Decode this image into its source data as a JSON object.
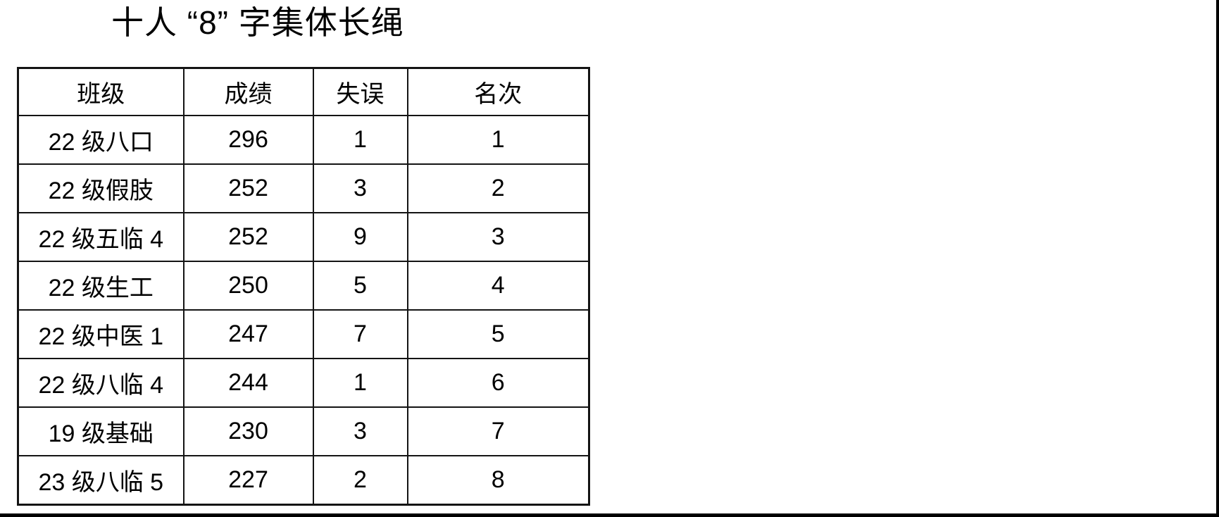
{
  "page": {
    "background": "#ffffff",
    "frame_border_color": "#000000",
    "text_color": "#000000",
    "table_border_color": "#141414"
  },
  "title": "十人 “8” 字集体长绳",
  "table": {
    "headers": [
      "班级",
      "成绩",
      "失误",
      "名次"
    ],
    "rows": [
      {
        "class": "22 级八口",
        "score": "296",
        "errors": "1",
        "rank": "1"
      },
      {
        "class": "22 级假肢",
        "score": "252",
        "errors": "3",
        "rank": "2"
      },
      {
        "class": "22 级五临 4",
        "score": "252",
        "errors": "9",
        "rank": "3"
      },
      {
        "class": "22 级生工",
        "score": "250",
        "errors": "5",
        "rank": "4"
      },
      {
        "class": "22 级中医 1",
        "score": "247",
        "errors": "7",
        "rank": "5"
      },
      {
        "class": "22 级八临 4",
        "score": "244",
        "errors": "1",
        "rank": "6"
      },
      {
        "class": "19 级基础",
        "score": "230",
        "errors": "3",
        "rank": "7"
      },
      {
        "class": "23 级八临 5",
        "score": "227",
        "errors": "2",
        "rank": "8"
      }
    ]
  }
}
